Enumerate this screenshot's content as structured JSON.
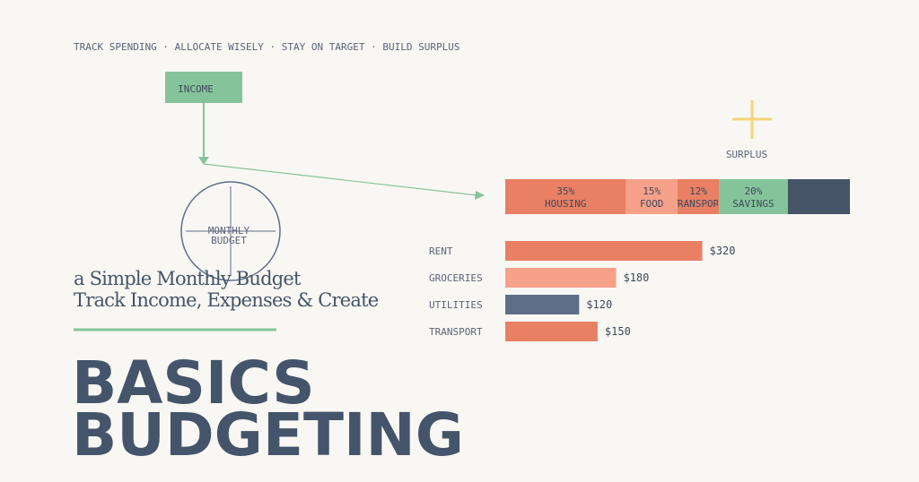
{
  "tagline": "TRACK SPENDING · ALLOCATE WISELY · STAY ON TARGET · BUILD SURPLUS",
  "flow": {
    "income": "INCOME",
    "center": [
      "MONTHLY",
      "BUDGET"
    ],
    "surplus": "SURPLUS"
  },
  "allocation": {
    "segments": [
      {
        "label": "HOUSING",
        "value": 35,
        "value_label": "35%",
        "color": "#e97f63"
      },
      {
        "label": "FOOD",
        "value": 15,
        "value_label": "15%",
        "color": "#f7a08a"
      },
      {
        "label": "TRANSPORT",
        "value": 12,
        "value_label": "12%",
        "color": "#e97f63"
      },
      {
        "label": "SAVINGS",
        "value": 20,
        "value_label": "20%",
        "color": "#85c49a"
      },
      {
        "value": 18,
        "color": "#465468"
      }
    ]
  },
  "expenses": {
    "categories": [
      "RENT",
      "GROCERIES",
      "UTILITIES",
      "TRANSPORT"
    ],
    "values": [
      320,
      180,
      120,
      150
    ],
    "value_labels": [
      "$320",
      "$180",
      "$120",
      "$150"
    ],
    "colors": [
      "#e97f63",
      "#f7a08a",
      "#5f6e88",
      "#e97f63"
    ]
  },
  "subtitle": [
    "a Simple Monthly Budget",
    "Track Income, Expenses & Create"
  ],
  "title": [
    "BASICS",
    "BUDGETING"
  ]
}
